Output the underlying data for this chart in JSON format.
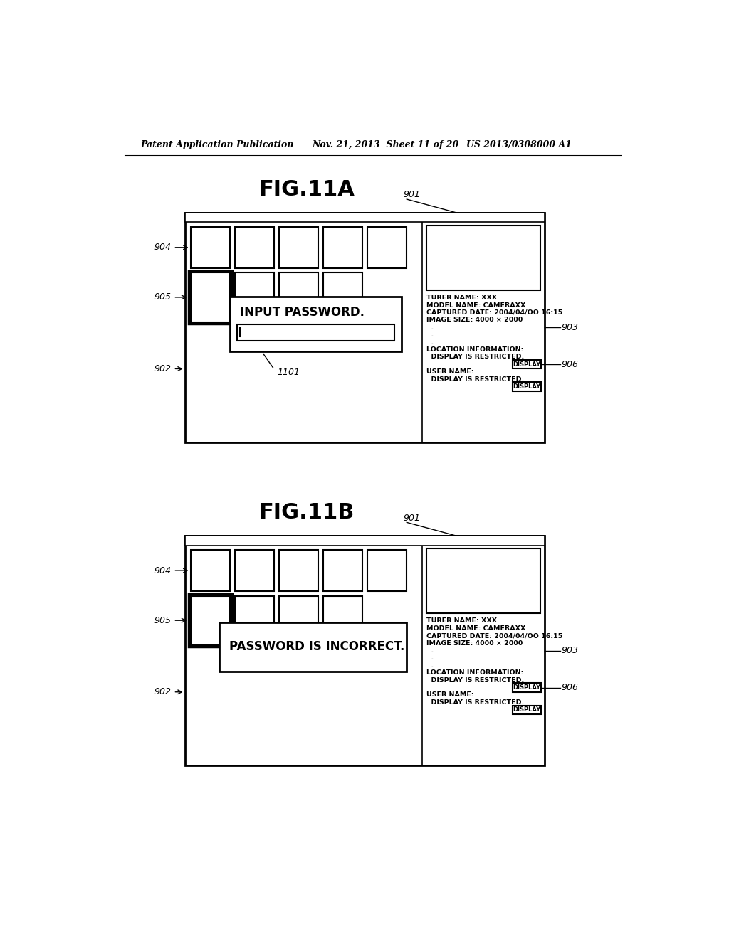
{
  "bg_color": "#ffffff",
  "header_text_left": "Patent Application Publication",
  "header_text_mid": "Nov. 21, 2013  Sheet 11 of 20",
  "header_text_right": "US 2013/0308000 A1",
  "fig11a_title": "FIG.11A",
  "fig11b_title": "FIG.11B",
  "label_901": "901",
  "label_902": "902",
  "label_903": "903",
  "label_904": "904",
  "label_905": "905",
  "label_906": "906",
  "label_1101": "1101",
  "info_lines": [
    "TURER NAME: XXX",
    "MODEL NAME: CAMERAXX",
    "CAPTURED DATE: 2004/04/OO 16:15",
    "IMAGE SIZE: 4000 × 2000",
    "  .",
    "  .",
    "  .",
    "LOCATION INFORMATION:",
    "  DISPLAY IS RESTRICTED.",
    "",
    "USER NAME:",
    "  DISPLAY IS RESTRICTED."
  ]
}
